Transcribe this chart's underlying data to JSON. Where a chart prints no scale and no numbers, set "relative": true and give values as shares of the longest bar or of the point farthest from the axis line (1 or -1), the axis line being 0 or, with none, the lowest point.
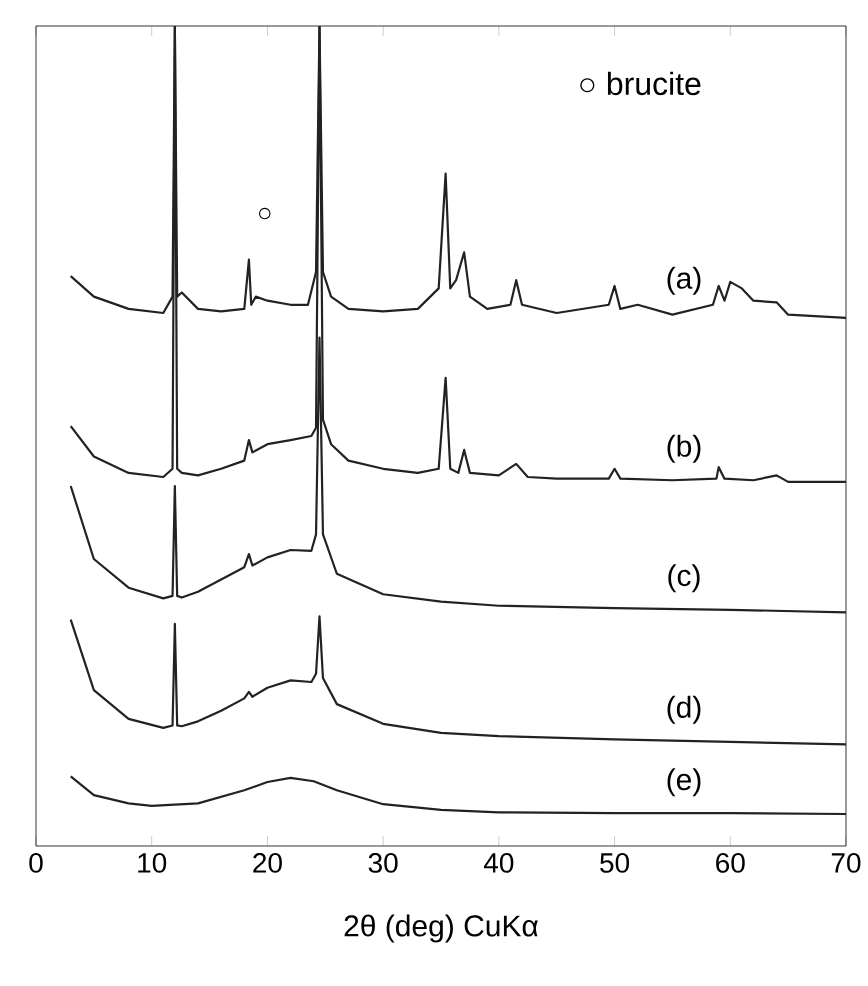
{
  "chart_data": {
    "type": "line",
    "relative": true,
    "xlabel": "2θ  (deg)  CuKα",
    "xlim": [
      0,
      70
    ],
    "xticks": [
      0,
      10,
      20,
      30,
      40,
      50,
      60,
      70
    ],
    "marker": "none",
    "line_style": "solid",
    "grid": false,
    "tick_labels": "x",
    "annotations": [
      "○ brucite",
      "○"
    ],
    "series": [
      {
        "name": "(a)",
        "color": "#222222",
        "x": [
          3,
          5,
          8,
          11,
          11.8,
          12,
          12.2,
          12.6,
          14,
          16,
          18,
          18.4,
          18.6,
          19,
          20,
          22,
          23.5,
          24.2,
          24.5,
          24.8,
          25.5,
          27,
          30,
          33,
          34.8,
          35.4,
          35.8,
          36.3,
          37,
          37.5,
          39,
          41,
          41.5,
          42,
          45,
          49.5,
          50,
          50.5,
          52,
          55,
          58.5,
          59,
          59.5,
          60,
          61,
          62,
          64,
          65,
          70
        ],
        "values": [
          0.695,
          0.67,
          0.655,
          0.65,
          0.67,
          1,
          0.67,
          0.675,
          0.655,
          0.652,
          0.655,
          0.715,
          0.66,
          0.67,
          0.665,
          0.66,
          0.66,
          0.7,
          1,
          0.7,
          0.67,
          0.655,
          0.652,
          0.655,
          0.68,
          0.82,
          0.68,
          0.69,
          0.724,
          0.67,
          0.655,
          0.66,
          0.69,
          0.66,
          0.65,
          0.66,
          0.683,
          0.655,
          0.66,
          0.648,
          0.66,
          0.683,
          0.665,
          0.688,
          0.68,
          0.665,
          0.663,
          0.648,
          0.644
        ]
      },
      {
        "name": "(b)",
        "color": "#222222",
        "x": [
          3,
          5,
          8,
          11,
          11.8,
          12,
          12.2,
          12.6,
          14,
          16,
          18,
          18.4,
          18.7,
          20,
          22,
          23.8,
          24.2,
          24.5,
          24.8,
          25.5,
          27,
          30,
          33,
          34.8,
          35.4,
          35.8,
          36.5,
          37,
          37.5,
          40,
          41.5,
          42.5,
          45,
          49.5,
          50,
          50.5,
          55,
          58.8,
          59,
          59.5,
          62,
          64,
          65,
          70
        ],
        "values": [
          0.512,
          0.475,
          0.455,
          0.45,
          0.46,
          1,
          0.46,
          0.455,
          0.452,
          0.46,
          0.47,
          0.495,
          0.48,
          0.49,
          0.495,
          0.5,
          0.51,
          1,
          0.52,
          0.49,
          0.47,
          0.46,
          0.455,
          0.46,
          0.571,
          0.46,
          0.455,
          0.483,
          0.455,
          0.452,
          0.466,
          0.45,
          0.448,
          0.448,
          0.46,
          0.448,
          0.446,
          0.448,
          0.462,
          0.448,
          0.446,
          0.452,
          0.444,
          0.444
        ]
      },
      {
        "name": "(c)",
        "color": "#222222",
        "x": [
          3,
          5,
          8,
          11,
          11.8,
          12,
          12.2,
          12.6,
          14,
          16,
          18,
          18.4,
          18.7,
          20,
          22,
          23.8,
          24.2,
          24.5,
          24.8,
          26,
          30,
          35,
          40,
          50,
          60,
          70
        ],
        "values": [
          0.439,
          0.35,
          0.315,
          0.302,
          0.305,
          0.439,
          0.305,
          0.303,
          0.31,
          0.325,
          0.34,
          0.356,
          0.342,
          0.352,
          0.361,
          0.36,
          0.38,
          0.62,
          0.38,
          0.332,
          0.307,
          0.298,
          0.293,
          0.29,
          0.288,
          0.285
        ]
      },
      {
        "name": "(d)",
        "color": "#222222",
        "x": [
          3,
          5,
          8,
          11,
          11.8,
          12,
          12.2,
          12.6,
          14,
          16,
          18,
          18.4,
          18.7,
          20,
          22,
          23.8,
          24.2,
          24.5,
          24.8,
          26,
          30,
          35,
          40,
          50,
          60,
          70
        ],
        "values": [
          0.276,
          0.19,
          0.155,
          0.144,
          0.147,
          0.271,
          0.147,
          0.146,
          0.152,
          0.165,
          0.18,
          0.188,
          0.182,
          0.193,
          0.202,
          0.2,
          0.21,
          0.28,
          0.205,
          0.173,
          0.149,
          0.138,
          0.134,
          0.13,
          0.127,
          0.124
        ]
      },
      {
        "name": "(e)",
        "color": "#222222",
        "x": [
          3,
          5,
          8,
          10,
          14,
          18,
          20,
          22,
          24,
          26,
          30,
          35,
          40,
          50,
          60,
          70
        ],
        "values": [
          0.085,
          0.062,
          0.052,
          0.049,
          0.052,
          0.068,
          0.078,
          0.083,
          0.079,
          0.068,
          0.051,
          0.044,
          0.041,
          0.04,
          0.04,
          0.039
        ]
      }
    ]
  }
}
